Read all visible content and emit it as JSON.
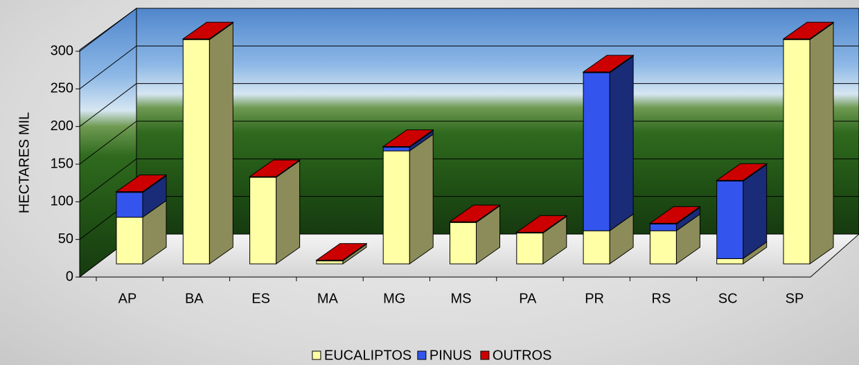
{
  "chart_data": {
    "type": "bar3d-stacked",
    "y_label": "HECTARES MIL",
    "categories": [
      "AP",
      "BA",
      "ES",
      "MA",
      "MG",
      "MS",
      "PA",
      "PR",
      "RS",
      "SC",
      "SP"
    ],
    "series": [
      {
        "name": "EUCALIPTOS",
        "color": "#ffffa6",
        "values": [
          62,
          298,
          115,
          4,
          150,
          55,
          41,
          44,
          44,
          7,
          298
        ]
      },
      {
        "name": "PINUS",
        "color": "#3355ee",
        "values": [
          33,
          0,
          0,
          0,
          5,
          0,
          0,
          210,
          9,
          103,
          0
        ]
      },
      {
        "name": "OUTROS",
        "color": "#cc0000",
        "values": [
          1,
          1,
          1,
          1,
          1,
          1,
          1,
          1,
          1,
          1,
          1
        ]
      }
    ],
    "ylim": [
      0,
      300
    ],
    "yticks": [
      0,
      50,
      100,
      150,
      200,
      250,
      300
    ],
    "grid": true,
    "legend": "bottom"
  }
}
